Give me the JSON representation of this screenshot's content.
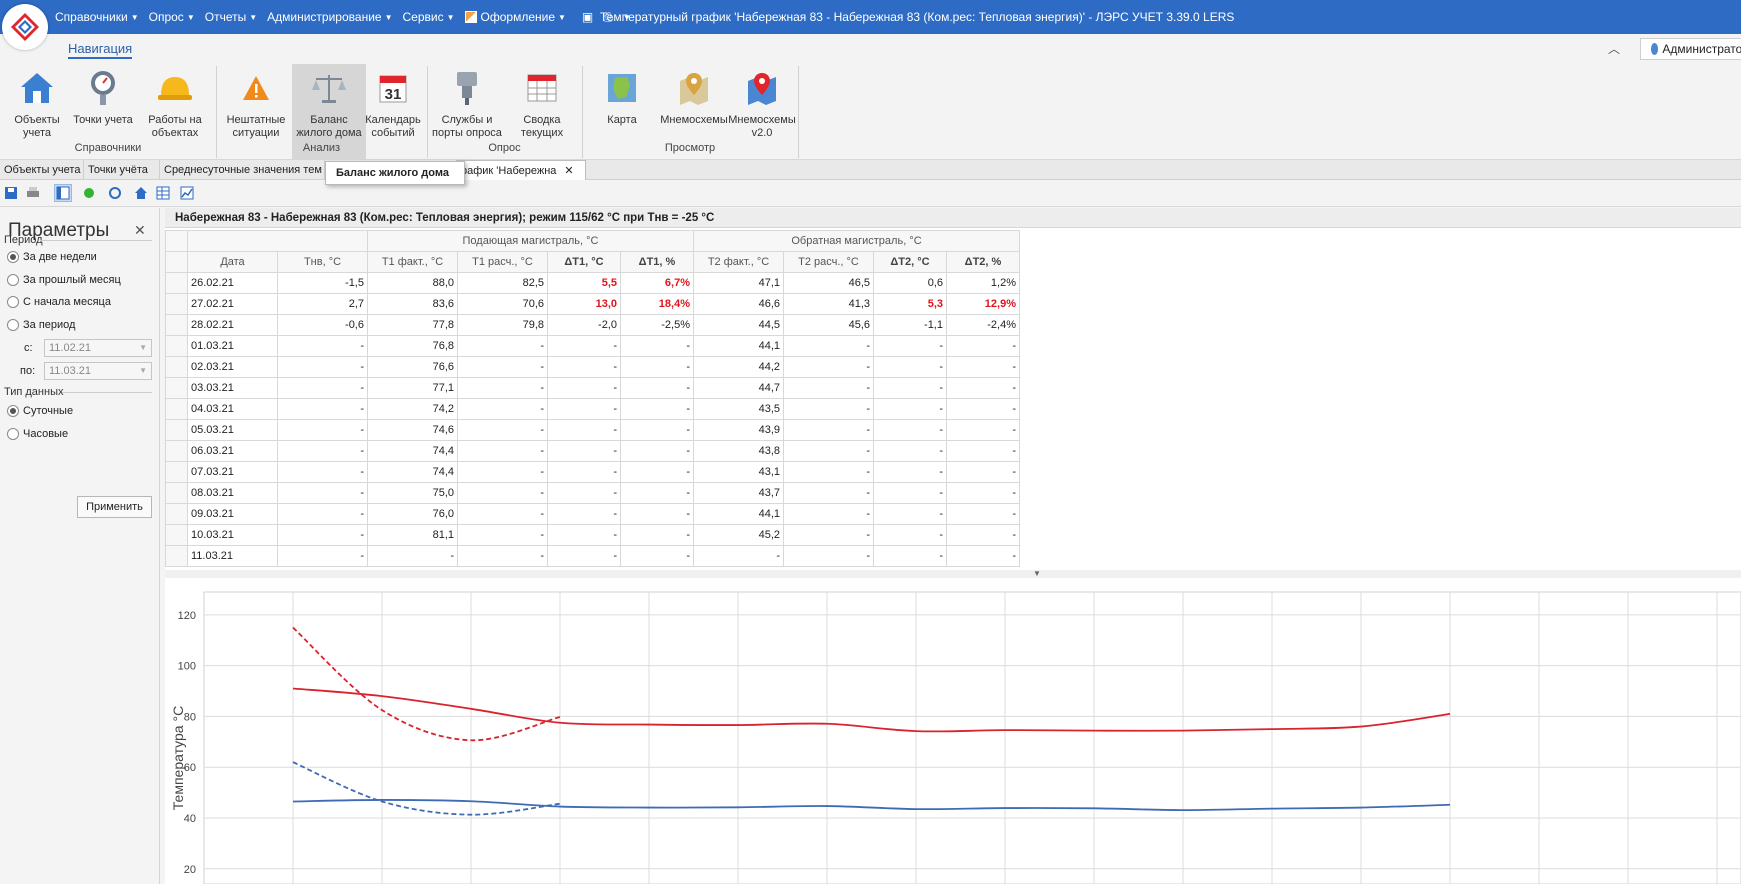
{
  "titlebar": {
    "menu": [
      {
        "label": "Справочники"
      },
      {
        "label": "Опрос"
      },
      {
        "label": "Отчеты"
      },
      {
        "label": "Администрирование"
      },
      {
        "label": "Сервис"
      },
      {
        "label": "Оформление"
      }
    ],
    "window_title": "Температурный график 'Набережная 83 - Набережная 83 (Ком.рес: Тепловая энергия)' - ЛЭРС УЧЕТ 3.39.0 LERS",
    "accent": "#2d6bc4"
  },
  "ribbon": {
    "tab": "Навигация",
    "user": "Администратор",
    "buttons": [
      {
        "label": "Объекты учета",
        "icon": "house-icon"
      },
      {
        "label": "Точки учета",
        "icon": "gauge-icon"
      },
      {
        "label": "Работы на объектах",
        "icon": "hardhat-icon"
      },
      {
        "label": "Нештатные ситуации",
        "icon": "warning-icon"
      },
      {
        "label": "Баланс жилого дома",
        "icon": "scales-icon"
      },
      {
        "label": "Календарь событий",
        "icon": "calendar-icon",
        "day": "31"
      },
      {
        "label": "Службы и порты опроса",
        "icon": "connector-icon"
      },
      {
        "label": "Сводка текущих",
        "icon": "table-icon"
      },
      {
        "label": "Карта",
        "icon": "map-icon"
      },
      {
        "label": "Мнемосхемы",
        "icon": "map-pin-icon"
      },
      {
        "label": "Мнемосхемы v2.0",
        "icon": "map-pin-red-icon"
      }
    ],
    "groups": [
      "Справочники",
      "Анализ",
      "Опрос",
      "Просмотр"
    ]
  },
  "tooltip": "Баланс жилого дома",
  "doc_tabs": [
    {
      "label": "Объекты учета"
    },
    {
      "label": "Точки учёта"
    },
    {
      "label": "Среднесуточные значения тем"
    },
    {
      "label": "рафик 'Набережна"
    }
  ],
  "params": {
    "title": "Параметры",
    "period_label": "Период",
    "period_options": [
      "За две недели",
      "За прошлый месяц",
      "С начала месяца",
      "За период"
    ],
    "from_label": "с:",
    "from_value": "11.02.21",
    "to_label": "по:",
    "to_value": "11.03.21",
    "type_label": "Тип данных",
    "type_options": [
      "Суточные",
      "Часовые"
    ],
    "apply": "Применить"
  },
  "report": {
    "title": "Набережная 83 - Набережная 83 (Ком.рес: Тепловая энергия); режим 115/62 °С при Тнв = -25 °С",
    "group_supply": "Подающая магистраль, °С",
    "group_return": "Обратная магистраль, °С",
    "columns": [
      "Дата",
      "Тнв, °С",
      "Т1 факт., °С",
      "Т1 расч., °С",
      "ΔТ1, °С",
      "ΔТ1, %",
      "Т2 факт., °С",
      "Т2 расч., °С",
      "ΔТ2, °С",
      "ΔТ2, %"
    ],
    "rows": [
      [
        "26.02.21",
        "-1,5",
        "88,0",
        "82,5",
        "5,5",
        "6,7%",
        "47,1",
        "46,5",
        "0,6",
        "1,2%"
      ],
      [
        "27.02.21",
        "2,7",
        "83,6",
        "70,6",
        "13,0",
        "18,4%",
        "46,6",
        "41,3",
        "5,3",
        "12,9%"
      ],
      [
        "28.02.21",
        "-0,6",
        "77,8",
        "79,8",
        "-2,0",
        "-2,5%",
        "44,5",
        "45,6",
        "-1,1",
        "-2,4%"
      ],
      [
        "01.03.21",
        "-",
        "76,8",
        "-",
        "-",
        "-",
        "44,1",
        "-",
        "-",
        "-"
      ],
      [
        "02.03.21",
        "-",
        "76,6",
        "-",
        "-",
        "-",
        "44,2",
        "-",
        "-",
        "-"
      ],
      [
        "03.03.21",
        "-",
        "77,1",
        "-",
        "-",
        "-",
        "44,7",
        "-",
        "-",
        "-"
      ],
      [
        "04.03.21",
        "-",
        "74,2",
        "-",
        "-",
        "-",
        "43,5",
        "-",
        "-",
        "-"
      ],
      [
        "05.03.21",
        "-",
        "74,6",
        "-",
        "-",
        "-",
        "43,9",
        "-",
        "-",
        "-"
      ],
      [
        "06.03.21",
        "-",
        "74,4",
        "-",
        "-",
        "-",
        "43,8",
        "-",
        "-",
        "-"
      ],
      [
        "07.03.21",
        "-",
        "74,4",
        "-",
        "-",
        "-",
        "43,1",
        "-",
        "-",
        "-"
      ],
      [
        "08.03.21",
        "-",
        "75,0",
        "-",
        "-",
        "-",
        "43,7",
        "-",
        "-",
        "-"
      ],
      [
        "09.03.21",
        "-",
        "76,0",
        "-",
        "-",
        "-",
        "44,1",
        "-",
        "-",
        "-"
      ],
      [
        "10.03.21",
        "-",
        "81,1",
        "-",
        "-",
        "-",
        "45,2",
        "-",
        "-",
        "-"
      ],
      [
        "11.03.21",
        "-",
        "-",
        "-",
        "-",
        "-",
        "-",
        "-",
        "-",
        "-"
      ]
    ],
    "red_cells": [
      [
        0,
        4
      ],
      [
        0,
        5
      ],
      [
        1,
        4
      ],
      [
        1,
        5
      ],
      [
        1,
        8
      ],
      [
        1,
        9
      ]
    ],
    "warn_color": "#e0141e"
  },
  "chart_data": {
    "type": "line",
    "ylabel": "Температура °С",
    "yticks": [
      20,
      40,
      60,
      80,
      100,
      120
    ],
    "y_visible_range": [
      14,
      129
    ],
    "x_slots": 15,
    "grid": true,
    "series": [
      {
        "color": "#d9232e",
        "dash": false,
        "points": [
          [
            1,
            91
          ],
          [
            2,
            88
          ],
          [
            3,
            83
          ],
          [
            4,
            77.5
          ],
          [
            5,
            76.8
          ],
          [
            6,
            76.6
          ],
          [
            7,
            77.1
          ],
          [
            8,
            74.2
          ],
          [
            9,
            74.6
          ],
          [
            10,
            74.4
          ],
          [
            11,
            74.4
          ],
          [
            12,
            75
          ],
          [
            13,
            76
          ],
          [
            14,
            81
          ]
        ]
      },
      {
        "color": "#d9232e",
        "dash": true,
        "points": [
          [
            1,
            115
          ],
          [
            2,
            82.5
          ],
          [
            3,
            70.6
          ],
          [
            4,
            79.8
          ]
        ]
      },
      {
        "color": "#3f6bb5",
        "dash": false,
        "points": [
          [
            1,
            46.5
          ],
          [
            2,
            47.1
          ],
          [
            3,
            46.6
          ],
          [
            4,
            44.5
          ],
          [
            5,
            44.1
          ],
          [
            6,
            44.2
          ],
          [
            7,
            44.7
          ],
          [
            8,
            43.5
          ],
          [
            9,
            43.9
          ],
          [
            10,
            43.8
          ],
          [
            11,
            43.1
          ],
          [
            12,
            43.7
          ],
          [
            13,
            44.1
          ],
          [
            14,
            45.2
          ]
        ]
      },
      {
        "color": "#3f6bb5",
        "dash": true,
        "points": [
          [
            1,
            62
          ],
          [
            2,
            46.5
          ],
          [
            3,
            41.3
          ],
          [
            4,
            45.6
          ]
        ]
      }
    ]
  }
}
